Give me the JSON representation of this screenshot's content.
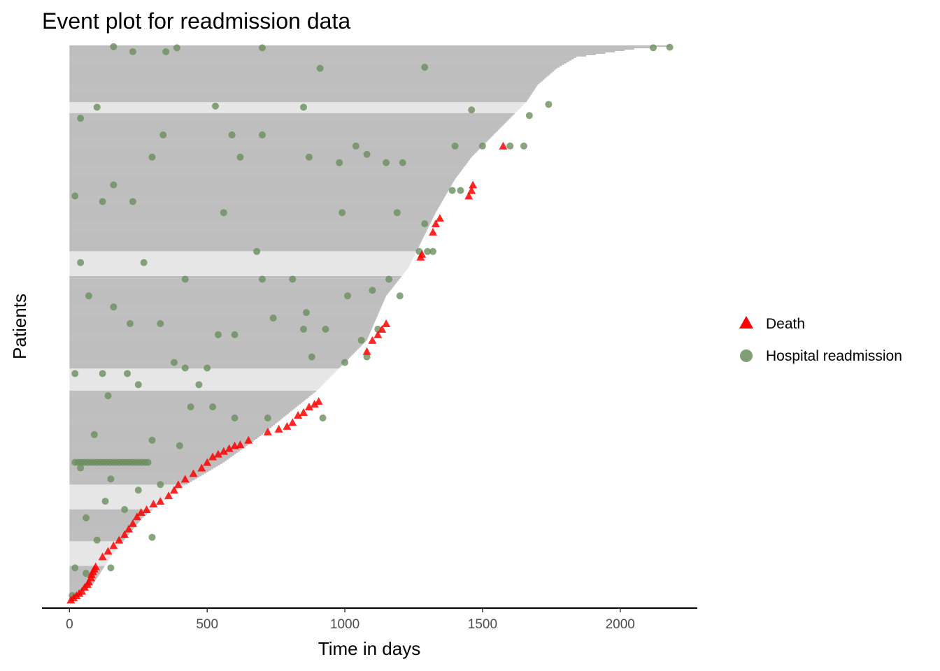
{
  "chart_data": {
    "type": "scatter",
    "subtype": "event-plot",
    "title": "Event plot for readmission data",
    "xlabel": "Time in days",
    "ylabel": "Patients",
    "xlim": [
      -100,
      2280
    ],
    "xticks": [
      0,
      500,
      1000,
      1500,
      2000
    ],
    "xtick_labels": [
      "0",
      "500",
      "1000",
      "1500",
      "2000"
    ],
    "n_patients": 403,
    "grid": false,
    "legend_position": "right",
    "legend": [
      {
        "name": "Death",
        "shape": "triangle",
        "color": "#ff0000"
      },
      {
        "name": "Hospital readmission",
        "shape": "circle",
        "color": "#6b8e5f"
      }
    ],
    "colors": {
      "segment": "#bebebe",
      "segment_light": "#e6e6e6",
      "death": "#ff0000",
      "readmission": "#6b8e5f"
    },
    "followup_profile": [
      [
        0,
        0
      ],
      [
        0.03,
        85
      ],
      [
        0.08,
        150
      ],
      [
        0.12,
        215
      ],
      [
        0.15,
        265
      ],
      [
        0.2,
        390
      ],
      [
        0.25,
        560
      ],
      [
        0.3,
        700
      ],
      [
        0.34,
        800
      ],
      [
        0.38,
        900
      ],
      [
        0.43,
        1000
      ],
      [
        0.47,
        1080
      ],
      [
        0.55,
        1150
      ],
      [
        0.6,
        1230
      ],
      [
        0.66,
        1290
      ],
      [
        0.7,
        1330
      ],
      [
        0.76,
        1400
      ],
      [
        0.8,
        1460
      ],
      [
        0.85,
        1560
      ],
      [
        0.88,
        1620
      ],
      [
        0.9,
        1660
      ],
      [
        0.93,
        1700
      ],
      [
        0.96,
        1770
      ],
      [
        0.98,
        1840
      ],
      [
        0.995,
        2050
      ],
      [
        1,
        2180
      ]
    ],
    "light_bands": [
      [
        0.064,
        0.108
      ],
      [
        0.165,
        0.21
      ],
      [
        0.38,
        0.42
      ],
      [
        0.585,
        0.63
      ],
      [
        0.88,
        0.9
      ]
    ],
    "deaths": [
      [
        5,
        0.002
      ],
      [
        15,
        0.006
      ],
      [
        25,
        0.01
      ],
      [
        35,
        0.014
      ],
      [
        45,
        0.018
      ],
      [
        55,
        0.025
      ],
      [
        65,
        0.03
      ],
      [
        70,
        0.035
      ],
      [
        78,
        0.042
      ],
      [
        80,
        0.048
      ],
      [
        85,
        0.053
      ],
      [
        90,
        0.058
      ],
      [
        95,
        0.062
      ],
      [
        120,
        0.08
      ],
      [
        140,
        0.09
      ],
      [
        160,
        0.1
      ],
      [
        180,
        0.11
      ],
      [
        200,
        0.12
      ],
      [
        215,
        0.13
      ],
      [
        230,
        0.14
      ],
      [
        245,
        0.152
      ],
      [
        260,
        0.16
      ],
      [
        280,
        0.165
      ],
      [
        305,
        0.175
      ],
      [
        330,
        0.18
      ],
      [
        360,
        0.19
      ],
      [
        380,
        0.2
      ],
      [
        395,
        0.21
      ],
      [
        420,
        0.22
      ],
      [
        450,
        0.23
      ],
      [
        480,
        0.24
      ],
      [
        500,
        0.25
      ],
      [
        520,
        0.26
      ],
      [
        540,
        0.265
      ],
      [
        560,
        0.27
      ],
      [
        580,
        0.275
      ],
      [
        600,
        0.28
      ],
      [
        620,
        0.282
      ],
      [
        650,
        0.29
      ],
      [
        720,
        0.305
      ],
      [
        760,
        0.31
      ],
      [
        790,
        0.315
      ],
      [
        810,
        0.322
      ],
      [
        830,
        0.335
      ],
      [
        850,
        0.34
      ],
      [
        870,
        0.35
      ],
      [
        890,
        0.355
      ],
      [
        905,
        0.36
      ],
      [
        1080,
        0.45
      ],
      [
        1100,
        0.47
      ],
      [
        1120,
        0.48
      ],
      [
        1135,
        0.49
      ],
      [
        1150,
        0.5
      ],
      [
        1275,
        0.62
      ],
      [
        1280,
        0.625
      ],
      [
        1320,
        0.665
      ],
      [
        1330,
        0.68
      ],
      [
        1345,
        0.69
      ],
      [
        1450,
        0.73
      ],
      [
        1460,
        0.74
      ],
      [
        1465,
        0.75
      ],
      [
        1575,
        0.82
      ]
    ],
    "readmissions": [
      [
        160,
        0.999
      ],
      [
        390,
        0.997
      ],
      [
        700,
        0.997
      ],
      [
        2120,
        0.997
      ],
      [
        2180,
        0.998
      ],
      [
        230,
        0.99
      ],
      [
        350,
        0.99
      ],
      [
        910,
        0.96
      ],
      [
        1290,
        0.962
      ],
      [
        1740,
        0.895
      ],
      [
        530,
        0.892
      ],
      [
        1460,
        0.885
      ],
      [
        850,
        0.89
      ],
      [
        100,
        0.89
      ],
      [
        1670,
        0.875
      ],
      [
        40,
        0.87
      ],
      [
        340,
        0.84
      ],
      [
        590,
        0.84
      ],
      [
        700,
        0.84
      ],
      [
        1040,
        0.82
      ],
      [
        1600,
        0.82
      ],
      [
        1650,
        0.82
      ],
      [
        1400,
        0.82
      ],
      [
        1500,
        0.82
      ],
      [
        1080,
        0.805
      ],
      [
        1150,
        0.79
      ],
      [
        1210,
        0.79
      ],
      [
        980,
        0.79
      ],
      [
        870,
        0.8
      ],
      [
        620,
        0.8
      ],
      [
        300,
        0.8
      ],
      [
        160,
        0.75
      ],
      [
        20,
        0.73
      ],
      [
        120,
        0.72
      ],
      [
        230,
        0.72
      ],
      [
        560,
        0.7
      ],
      [
        990,
        0.7
      ],
      [
        1190,
        0.7
      ],
      [
        1290,
        0.68
      ],
      [
        1390,
        0.74
      ],
      [
        1420,
        0.74
      ],
      [
        1300,
        0.63
      ],
      [
        1320,
        0.63
      ],
      [
        1270,
        0.63
      ],
      [
        680,
        0.63
      ],
      [
        40,
        0.61
      ],
      [
        270,
        0.61
      ],
      [
        420,
        0.58
      ],
      [
        700,
        0.58
      ],
      [
        810,
        0.58
      ],
      [
        1160,
        0.58
      ],
      [
        1100,
        0.56
      ],
      [
        1010,
        0.55
      ],
      [
        1200,
        0.55
      ],
      [
        740,
        0.51
      ],
      [
        330,
        0.5
      ],
      [
        220,
        0.5
      ],
      [
        160,
        0.53
      ],
      [
        70,
        0.55
      ],
      [
        860,
        0.52
      ],
      [
        850,
        0.49
      ],
      [
        930,
        0.49
      ],
      [
        540,
        0.48
      ],
      [
        600,
        0.48
      ],
      [
        1060,
        0.47
      ],
      [
        1120,
        0.49
      ],
      [
        1080,
        0.44
      ],
      [
        1000,
        0.43
      ],
      [
        880,
        0.44
      ],
      [
        380,
        0.43
      ],
      [
        420,
        0.42
      ],
      [
        500,
        0.42
      ],
      [
        20,
        0.41
      ],
      [
        120,
        0.41
      ],
      [
        210,
        0.41
      ],
      [
        250,
        0.39
      ],
      [
        470,
        0.39
      ],
      [
        440,
        0.35
      ],
      [
        520,
        0.35
      ],
      [
        600,
        0.33
      ],
      [
        720,
        0.33
      ],
      [
        920,
        0.33
      ],
      [
        140,
        0.37
      ],
      [
        90,
        0.3
      ],
      [
        300,
        0.29
      ],
      [
        400,
        0.28
      ],
      [
        40,
        0.24
      ],
      [
        150,
        0.22
      ],
      [
        130,
        0.18
      ],
      [
        200,
        0.165
      ],
      [
        330,
        0.21
      ],
      [
        250,
        0.2
      ],
      [
        60,
        0.15
      ],
      [
        100,
        0.11
      ],
      [
        300,
        0.115
      ],
      [
        150,
        0.06
      ],
      [
        20,
        0.06
      ],
      [
        10,
        0.01
      ],
      [
        60,
        0.05
      ]
    ],
    "readmission_cluster": {
      "y": 0.25,
      "x_from": 20,
      "x_to": 285,
      "n": 24
    }
  }
}
